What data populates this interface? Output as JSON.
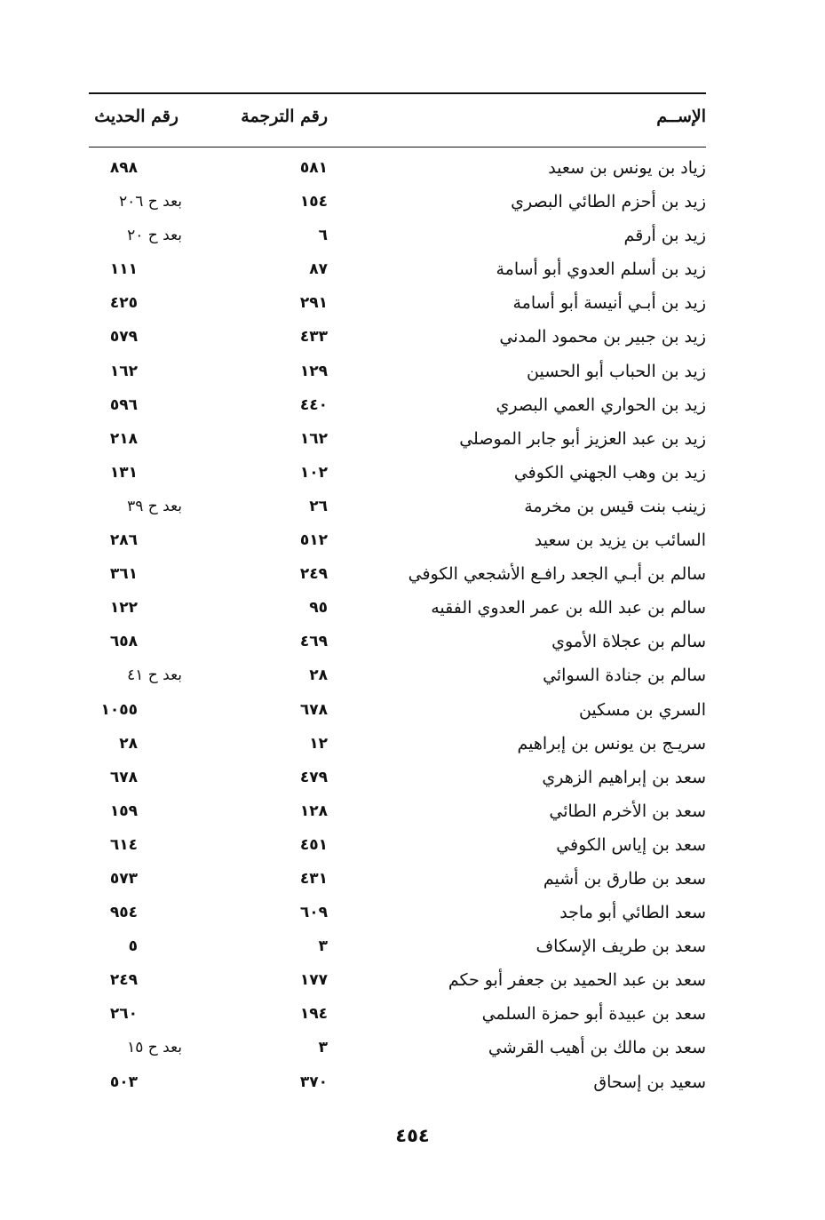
{
  "header": {
    "name": "الإســم",
    "tarjama": "رقم الترجمة",
    "hadith": "رقم الحديث"
  },
  "rows": [
    {
      "name": "زياد بن يونس بن سعيد",
      "tarjama": "٥٨١",
      "hadith": "٨٩٨"
    },
    {
      "name": "زيد بن أحزم الطائي البصري",
      "tarjama": "١٥٤",
      "hadith": "بعد ح ٢٠٦"
    },
    {
      "name": "زيد بن أرقم",
      "tarjama": "٦",
      "hadith": "بعد ح ٢٠"
    },
    {
      "name": "زيد بن أسلم العدوي أبو أسامة",
      "tarjama": "٨٧",
      "hadith": "١١١"
    },
    {
      "name": "زيد بن أبـي أنيسة أبو أسامة",
      "tarjama": "٢٩١",
      "hadith": "٤٢٥"
    },
    {
      "name": "زيد بن جبير بن محمود المدني",
      "tarjama": "٤٣٣",
      "hadith": "٥٧٩"
    },
    {
      "name": "زيد بن الحباب أبو الحسين",
      "tarjama": "١٢٩",
      "hadith": "١٦٢"
    },
    {
      "name": "زيد بن الحواري العمي البصري",
      "tarjama": "٤٤٠",
      "hadith": "٥٩٦"
    },
    {
      "name": "زيد بن عبد العزيز أبو جابر الموصلي",
      "tarjama": "١٦٢",
      "hadith": "٢١٨"
    },
    {
      "name": "زيد بن وهب الجهني الكوفي",
      "tarjama": "١٠٢",
      "hadith": "١٣١"
    },
    {
      "name": "زينب بنت قيس بن مخرمة",
      "tarjama": "٢٦",
      "hadith": "بعد ح ٣٩"
    },
    {
      "name": "السائب بن يزيد بن سعيد",
      "tarjama": "٥١٢",
      "hadith": "٢٨٦"
    },
    {
      "name": "سالم بن أبـي الجعد رافـع الأشجعي الكوفي",
      "tarjama": "٢٤٩",
      "hadith": "٣٦١"
    },
    {
      "name": "سالم بن عبد الله بن عمر العدوي الفقيه",
      "tarjama": "٩٥",
      "hadith": "١٢٢"
    },
    {
      "name": "سالم بن عجلاة الأموي",
      "tarjama": "٤٦٩",
      "hadith": "٦٥٨"
    },
    {
      "name": "سالم بن جنادة السوائي",
      "tarjama": "٢٨",
      "hadith": "بعد ح ٤١"
    },
    {
      "name": "السري بن مسكين",
      "tarjama": "٦٧٨",
      "hadith": "١٠٥٥"
    },
    {
      "name": "سريـج بن يونس بن إبراهيم",
      "tarjama": "١٢",
      "hadith": "٢٨"
    },
    {
      "name": "سعد بن إبراهيم الزهري",
      "tarjama": "٤٧٩",
      "hadith": "٦٧٨"
    },
    {
      "name": "سعد بن الأخرم الطائي",
      "tarjama": "١٢٨",
      "hadith": "١٥٩"
    },
    {
      "name": "سعد بن إياس الكوفي",
      "tarjama": "٤٥١",
      "hadith": "٦١٤"
    },
    {
      "name": "سعد بن طارق بن أشيم",
      "tarjama": "٤٣١",
      "hadith": "٥٧٣"
    },
    {
      "name": "سعد الطائي أبو ماجد",
      "tarjama": "٦٠٩",
      "hadith": "٩٥٤"
    },
    {
      "name": "سعد بن طريف الإسكاف",
      "tarjama": "٣",
      "hadith": "٥"
    },
    {
      "name": "سعد بن عبد الحميد بن جعفر أبو حكم",
      "tarjama": "١٧٧",
      "hadith": "٢٤٩"
    },
    {
      "name": "سعد بن عبيدة أبو حمزة السلمي",
      "tarjama": "١٩٤",
      "hadith": "٢٦٠"
    },
    {
      "name": "سعد بن مالك بن أهيب القرشي",
      "tarjama": "٣",
      "hadith": "بعد ح ١٥"
    },
    {
      "name": "سعيد بن إسحاق",
      "tarjama": "٣٧٠",
      "hadith": "٥٠٣"
    }
  ],
  "page_number": "٤٥٤"
}
